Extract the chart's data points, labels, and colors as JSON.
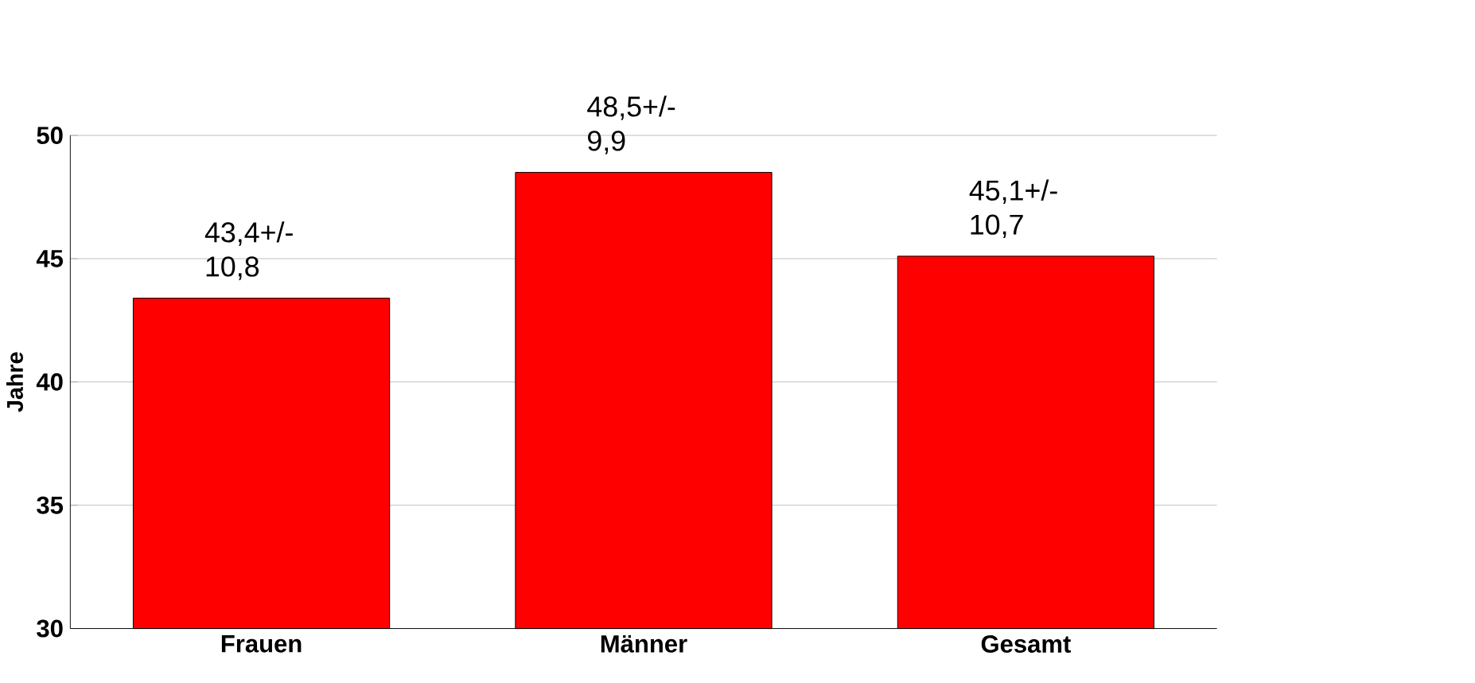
{
  "chart_data": {
    "type": "bar",
    "ylabel": "Jahre",
    "categories": [
      "Frauen",
      "Männer",
      "Gesamt"
    ],
    "values": [
      43.4,
      48.5,
      45.1
    ],
    "color": "#ff0000",
    "value_labels": [
      "43,4+/- 10,8",
      "48,5+/- 9,9",
      "45,1+/- 10,7"
    ],
    "ylim": [
      30,
      50
    ],
    "yticks": [
      30,
      35,
      40,
      45,
      50
    ],
    "grid": "y"
  }
}
